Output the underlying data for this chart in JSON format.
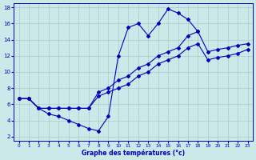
{
  "xlabel": "Graphe des températures (°c)",
  "bg_color": "#cce8e8",
  "grid_color": "#aacccc",
  "line_color": "#0000bb",
  "xlim": [
    -0.5,
    23.5
  ],
  "ylim": [
    1.5,
    18.5
  ],
  "yticks": [
    2,
    4,
    6,
    8,
    10,
    12,
    14,
    16,
    18
  ],
  "xticks": [
    0,
    1,
    2,
    3,
    4,
    5,
    6,
    7,
    8,
    9,
    10,
    11,
    12,
    13,
    14,
    15,
    16,
    17,
    18,
    19,
    20,
    21,
    22,
    23
  ],
  "line1_x": [
    0,
    1,
    2,
    3,
    4,
    5,
    6,
    7,
    8,
    9,
    10,
    11,
    12,
    13,
    14,
    15,
    16,
    17,
    18
  ],
  "line1_y": [
    6.7,
    6.7,
    5.5,
    4.8,
    4.5,
    4.0,
    3.5,
    3.0,
    2.7,
    4.5,
    12.0,
    15.5,
    16.0,
    14.5,
    16.0,
    17.8,
    17.3,
    16.5,
    15.0
  ],
  "line2_x": [
    0,
    1,
    2,
    3,
    4,
    5,
    6,
    7,
    8,
    9,
    10,
    11,
    12,
    13,
    14,
    15,
    16,
    17,
    18,
    19,
    20,
    21,
    22,
    23
  ],
  "line2_y": [
    6.7,
    6.7,
    5.5,
    5.5,
    5.5,
    5.5,
    5.5,
    5.5,
    7.5,
    8.0,
    9.0,
    9.5,
    10.5,
    11.0,
    12.0,
    12.5,
    13.0,
    14.5,
    15.0,
    12.5,
    12.8,
    13.0,
    13.3,
    13.5
  ],
  "line3_x": [
    0,
    1,
    2,
    3,
    4,
    5,
    6,
    7,
    8,
    9,
    10,
    11,
    12,
    13,
    14,
    15,
    16,
    17,
    18,
    19,
    20,
    21,
    22,
    23
  ],
  "line3_y": [
    6.7,
    6.7,
    5.5,
    5.5,
    5.5,
    5.5,
    5.5,
    5.5,
    7.0,
    7.5,
    8.0,
    8.5,
    9.5,
    10.0,
    11.0,
    11.5,
    12.0,
    13.0,
    13.5,
    11.5,
    11.8,
    12.0,
    12.3,
    12.8
  ]
}
